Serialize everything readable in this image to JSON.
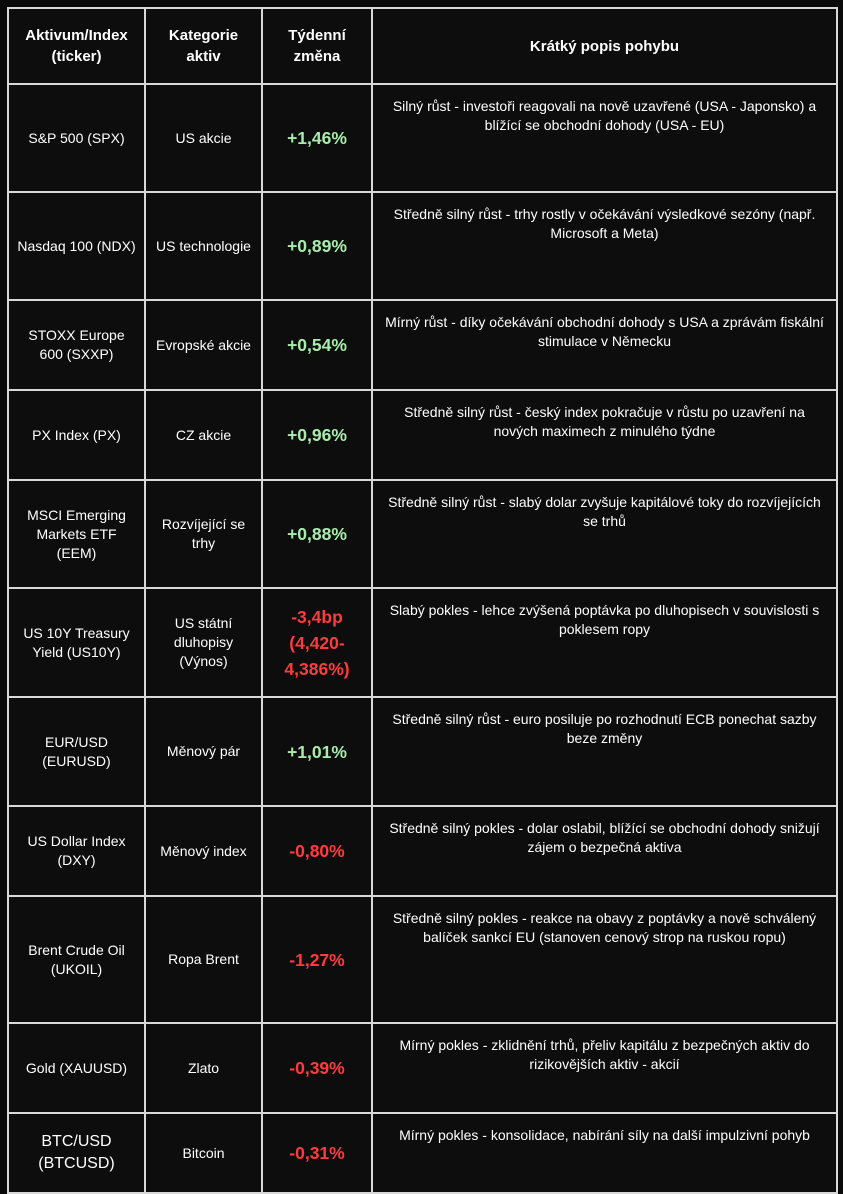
{
  "headers": {
    "asset": "Aktivum/Index (ticker)",
    "category": "Kategorie aktiv",
    "change": "Týdenní změna",
    "description": "Krátký popis pohybu"
  },
  "rows": [
    {
      "asset": "S&P 500 (SPX)",
      "category": "US akcie",
      "change": "+1,46%",
      "direction": "up",
      "description": "Silný růst - investoři reagovali na nově uzavřené (USA - Japonsko) a blížící se obchodní dohody (USA - EU)"
    },
    {
      "asset": "Nasdaq 100 (NDX)",
      "category": "US technologie",
      "change": "+0,89%",
      "direction": "up",
      "description": "Středně silný růst - trhy rostly v očekávání výsledkové sezóny (např. Microsoft a Meta)"
    },
    {
      "asset": "STOXX Europe 600 (SXXP)",
      "category": "Evropské akcie",
      "change": "+0,54%",
      "direction": "up",
      "description": "Mírný růst - díky očekávání obchodní dohody s USA a zprávám fiskální stimulace v Německu"
    },
    {
      "asset": "PX Index (PX)",
      "category": "CZ akcie",
      "change": "+0,96%",
      "direction": "up",
      "description": "Středně silný růst - český index pokračuje v růstu po uzavření na nových maximech z minulého týdne"
    },
    {
      "asset": "MSCI Emerging Markets ETF (EEM)",
      "category": "Rozvíjející se trhy",
      "change": "+0,88%",
      "direction": "up",
      "description": "Středně silný růst - slabý dolar zvyšuje kapitálové toky do rozvíjejících se trhů"
    },
    {
      "asset": "US 10Y Treasury Yield (US10Y)",
      "category": "US státní dluhopisy (Výnos)",
      "change": "-3,4bp (4,420-4,386%)",
      "direction": "down",
      "description": "Slabý pokles - lehce zvýšená poptávka po dluhopisech v souvislosti s poklesem ropy"
    },
    {
      "asset": "EUR/USD (EURUSD)",
      "category": "Měnový pár",
      "change": "+1,01%",
      "direction": "up",
      "description": "Středně silný růst - euro posiluje po rozhodnutí ECB ponechat sazby beze změny"
    },
    {
      "asset": "US Dollar Index (DXY)",
      "category": "Měnový index",
      "change": "-0,80%",
      "direction": "down",
      "description": "Středně silný pokles - dolar oslabil, blížící se obchodní dohody snižují zájem o bezpečná aktiva"
    },
    {
      "asset": "Brent Crude Oil (UKOIL)",
      "category": "Ropa Brent",
      "change": "-1,27%",
      "direction": "down",
      "description": "Středně silný pokles - reakce na obavy z poptávky a nově schválený balíček sankcí EU (stanoven cenový strop na ruskou ropu)"
    },
    {
      "asset": "Gold (XAUUSD)",
      "category": "Zlato",
      "change": "-0,39%",
      "direction": "down",
      "description": "Mírný pokles - zklidnění trhů, přeliv kapitálu z bezpečných aktiv do rizikovějších aktiv - akcií"
    },
    {
      "asset": "BTC/USD (BTCUSD)",
      "category": "Bitcoin",
      "change": "-0,31%",
      "direction": "down",
      "description": "Mírný pokles - konsolidace, nabírání síly na další impulzivní pohyb"
    }
  ]
}
